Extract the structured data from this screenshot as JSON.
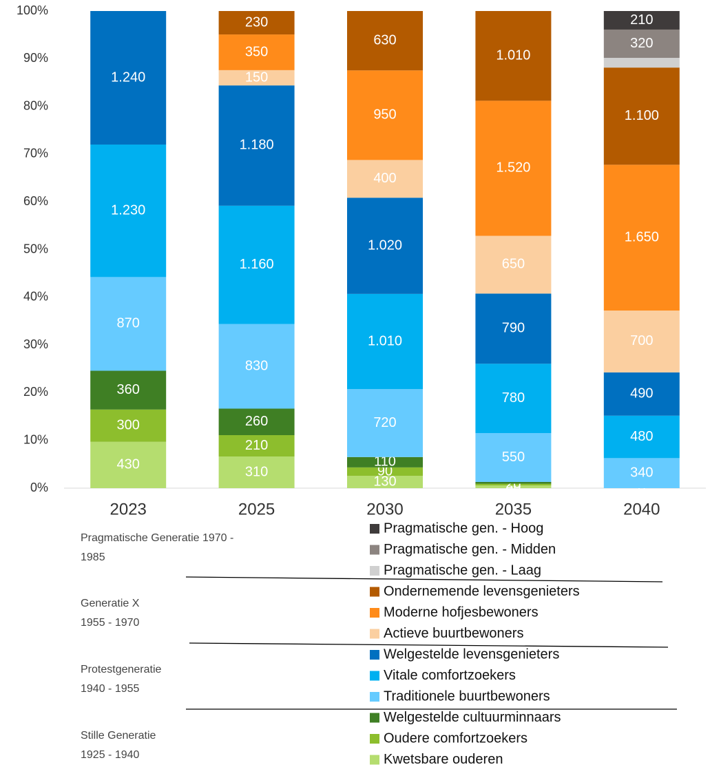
{
  "chart_data": {
    "type": "stacked_bar_100",
    "categories": [
      "2023",
      "2025",
      "2030",
      "2035",
      "2040"
    ],
    "ylim": [
      0,
      100
    ],
    "yticks": [
      {
        "value": 0,
        "label": "0%"
      },
      {
        "value": 10,
        "label": "10%"
      },
      {
        "value": 20,
        "label": "20%"
      },
      {
        "value": 30,
        "label": "30%"
      },
      {
        "value": 40,
        "label": "40%"
      },
      {
        "value": 50,
        "label": "50%"
      },
      {
        "value": 60,
        "label": "60%"
      },
      {
        "value": 70,
        "label": "70%"
      },
      {
        "value": 80,
        "label": "80%"
      },
      {
        "value": 90,
        "label": "90%"
      },
      {
        "value": 100,
        "label": "100%"
      }
    ],
    "series": [
      {
        "name": "Kwetsbare ouderen",
        "color": "#b5dd6f",
        "values": [
          430,
          310,
          130,
          30,
          0
        ],
        "value_labels": [
          "430",
          "310",
          "130",
          "30",
          "0"
        ]
      },
      {
        "name": "Oudere comfortzoekers",
        "color": "#8dbe2d",
        "values": [
          300,
          210,
          90,
          20,
          0
        ],
        "value_labels": [
          "300",
          "210",
          "90",
          "20",
          null
        ]
      },
      {
        "name": "Welgestelde cultuurminnaars",
        "color": "#3f7f24",
        "values": [
          360,
          260,
          110,
          20,
          0
        ],
        "value_labels": [
          "360",
          "260",
          "110",
          null,
          null
        ]
      },
      {
        "name": "Traditionele buurtbewoners",
        "color": "#66cbff",
        "values": [
          870,
          830,
          720,
          550,
          340
        ],
        "value_labels": [
          "870",
          "830",
          "720",
          "550",
          "340"
        ]
      },
      {
        "name": "Vitale comfortzoekers",
        "color": "#00b0f0",
        "values": [
          1230,
          1160,
          1010,
          780,
          480
        ],
        "value_labels": [
          "1.230",
          "1.160",
          "1.010",
          "780",
          "480"
        ]
      },
      {
        "name": "Welgestelde levensgenieters",
        "color": "#0070c0",
        "values": [
          1240,
          1180,
          1020,
          790,
          490
        ],
        "value_labels": [
          "1.240",
          "1.180",
          "1.020",
          "790",
          "490"
        ]
      },
      {
        "name": "Actieve buurtbewoners",
        "color": "#fbcfa0",
        "values": [
          null,
          150,
          400,
          650,
          700
        ],
        "value_labels": [
          null,
          "150",
          "400",
          "650",
          "700"
        ]
      },
      {
        "name": "Moderne hofjesbewoners",
        "color": "#ff8b1a",
        "values": [
          null,
          350,
          950,
          1520,
          1650
        ],
        "value_labels": [
          null,
          "350",
          "950",
          "1.520",
          "1.650"
        ]
      },
      {
        "name": "Ondernemende levensgenieters",
        "color": "#b35a00",
        "values": [
          null,
          230,
          630,
          1010,
          1100
        ],
        "value_labels": [
          null,
          "230",
          "630",
          "1.010",
          "1.100"
        ]
      },
      {
        "name": "Pragmatische gen. - Laag",
        "color": "#d0d0d0",
        "values": [
          null,
          null,
          null,
          null,
          110
        ],
        "value_labels": [
          null,
          null,
          null,
          null,
          null
        ]
      },
      {
        "name": "Pragmatische gen. - Midden",
        "color": "#8c8480",
        "values": [
          null,
          null,
          null,
          null,
          320
        ],
        "value_labels": [
          null,
          null,
          null,
          null,
          "320"
        ]
      },
      {
        "name": "Pragmatische gen. - Hoog",
        "color": "#3f3b3b",
        "values": [
          null,
          null,
          null,
          null,
          210
        ],
        "value_labels": [
          null,
          null,
          null,
          null,
          "210"
        ]
      }
    ],
    "groups": [
      {
        "line1": "Pragmatische Generatie 1970 -",
        "line2": "1985"
      },
      {
        "line1": "Generatie X",
        "line2": "1955 - 1970"
      },
      {
        "line1": "Protestgeneratie",
        "line2": "1940 - 1955"
      },
      {
        "line1": "Stille Generatie",
        "line2": "1925 - 1940"
      }
    ]
  }
}
